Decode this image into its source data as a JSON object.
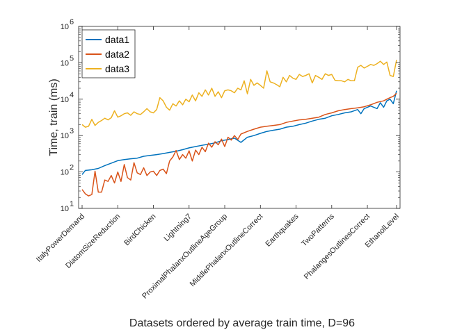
{
  "chart_data": {
    "type": "line",
    "title": "",
    "xlabel": "Datasets ordered by average train time, D=96",
    "ylabel": "Time, train (ms)",
    "yscale": "log",
    "ylim": [
      10,
      1000000
    ],
    "yticks": [
      {
        "value": 10,
        "base": "10",
        "exp": "1"
      },
      {
        "value": 100,
        "base": "10",
        "exp": "2"
      },
      {
        "value": 1000,
        "base": "10",
        "exp": "3"
      },
      {
        "value": 10000,
        "base": "10",
        "exp": "4"
      },
      {
        "value": 100000,
        "base": "10",
        "exp": "5"
      },
      {
        "value": 1000000,
        "base": "10",
        "exp": "6"
      }
    ],
    "xlim": [
      1,
      98
    ],
    "xticks": [
      {
        "index": 1,
        "label": "ItalyPowerDemand"
      },
      {
        "index": 12,
        "label": "DiatomSizeReduction"
      },
      {
        "index": 23,
        "label": "BirdChicken"
      },
      {
        "index": 34,
        "label": "Lightning7"
      },
      {
        "index": 45,
        "label": "ProximalPhalanxOutlineAgeGroup"
      },
      {
        "index": 56,
        "label": "MiddlePhalanxOutlineCorrect"
      },
      {
        "index": 67,
        "label": "Earthquakes"
      },
      {
        "index": 78,
        "label": "TwoPatterns"
      },
      {
        "index": 89,
        "label": "PhalangesOutlinesCorrect"
      },
      {
        "index": 98,
        "label": "EthanolLevel"
      }
    ],
    "grid": false,
    "legend_position": "top-left",
    "series": [
      {
        "name": "data1",
        "color": "#0072BD",
        "points": [
          [
            1,
            85
          ],
          [
            2,
            110
          ],
          [
            4,
            115
          ],
          [
            6,
            125
          ],
          [
            8,
            150
          ],
          [
            10,
            175
          ],
          [
            12,
            205
          ],
          [
            14,
            220
          ],
          [
            16,
            230
          ],
          [
            18,
            240
          ],
          [
            20,
            270
          ],
          [
            22,
            285
          ],
          [
            24,
            300
          ],
          [
            26,
            320
          ],
          [
            28,
            345
          ],
          [
            30,
            370
          ],
          [
            32,
            410
          ],
          [
            34,
            460
          ],
          [
            36,
            500
          ],
          [
            38,
            540
          ],
          [
            40,
            580
          ],
          [
            42,
            630
          ],
          [
            44,
            720
          ],
          [
            46,
            780
          ],
          [
            48,
            850
          ],
          [
            50,
            650
          ],
          [
            52,
            900
          ],
          [
            54,
            1000
          ],
          [
            56,
            1150
          ],
          [
            58,
            1300
          ],
          [
            60,
            1400
          ],
          [
            62,
            1500
          ],
          [
            64,
            1700
          ],
          [
            66,
            1800
          ],
          [
            68,
            2000
          ],
          [
            70,
            2200
          ],
          [
            72,
            2500
          ],
          [
            74,
            2800
          ],
          [
            76,
            3000
          ],
          [
            78,
            3500
          ],
          [
            80,
            3800
          ],
          [
            82,
            4200
          ],
          [
            84,
            4500
          ],
          [
            86,
            5200
          ],
          [
            87,
            4000
          ],
          [
            88,
            5500
          ],
          [
            90,
            6500
          ],
          [
            92,
            5500
          ],
          [
            93,
            8000
          ],
          [
            94,
            6000
          ],
          [
            95,
            9000
          ],
          [
            96,
            10000
          ],
          [
            97,
            7500
          ],
          [
            98,
            17000
          ]
        ]
      },
      {
        "name": "data2",
        "color": "#D95319",
        "points": [
          [
            1,
            33
          ],
          [
            2,
            25
          ],
          [
            3,
            22
          ],
          [
            4,
            24
          ],
          [
            5,
            105
          ],
          [
            6,
            28
          ],
          [
            7,
            28
          ],
          [
            8,
            60
          ],
          [
            9,
            55
          ],
          [
            10,
            80
          ],
          [
            11,
            50
          ],
          [
            12,
            100
          ],
          [
            13,
            55
          ],
          [
            14,
            160
          ],
          [
            15,
            70
          ],
          [
            16,
            60
          ],
          [
            17,
            180
          ],
          [
            18,
            95
          ],
          [
            19,
            85
          ],
          [
            20,
            130
          ],
          [
            21,
            80
          ],
          [
            22,
            100
          ],
          [
            23,
            105
          ],
          [
            24,
            80
          ],
          [
            25,
            110
          ],
          [
            26,
            120
          ],
          [
            27,
            90
          ],
          [
            28,
            200
          ],
          [
            29,
            260
          ],
          [
            30,
            390
          ],
          [
            31,
            220
          ],
          [
            32,
            300
          ],
          [
            33,
            240
          ],
          [
            34,
            380
          ],
          [
            35,
            200
          ],
          [
            36,
            400
          ],
          [
            37,
            300
          ],
          [
            38,
            480
          ],
          [
            39,
            360
          ],
          [
            40,
            620
          ],
          [
            41,
            480
          ],
          [
            42,
            680
          ],
          [
            43,
            560
          ],
          [
            44,
            800
          ],
          [
            45,
            500
          ],
          [
            46,
            900
          ],
          [
            47,
            750
          ],
          [
            48,
            1000
          ],
          [
            49,
            780
          ],
          [
            50,
            1100
          ],
          [
            52,
            1300
          ],
          [
            54,
            1500
          ],
          [
            56,
            1700
          ],
          [
            58,
            1800
          ],
          [
            60,
            1900
          ],
          [
            62,
            2000
          ],
          [
            64,
            2300
          ],
          [
            66,
            2500
          ],
          [
            68,
            2700
          ],
          [
            70,
            2800
          ],
          [
            72,
            3000
          ],
          [
            74,
            3200
          ],
          [
            76,
            3800
          ],
          [
            78,
            4200
          ],
          [
            80,
            4800
          ],
          [
            82,
            5200
          ],
          [
            84,
            5500
          ],
          [
            86,
            5800
          ],
          [
            88,
            6200
          ],
          [
            90,
            7000
          ],
          [
            92,
            8200
          ],
          [
            94,
            9000
          ],
          [
            95,
            10000
          ],
          [
            96,
            11000
          ],
          [
            97,
            12000
          ],
          [
            98,
            14500
          ]
        ]
      },
      {
        "name": "data3",
        "color": "#EDB120",
        "points": [
          [
            1,
            2000
          ],
          [
            2,
            1700
          ],
          [
            3,
            1800
          ],
          [
            4,
            2800
          ],
          [
            5,
            1900
          ],
          [
            6,
            2300
          ],
          [
            7,
            2600
          ],
          [
            8,
            3000
          ],
          [
            9,
            2700
          ],
          [
            10,
            3100
          ],
          [
            11,
            4800
          ],
          [
            12,
            3200
          ],
          [
            13,
            3500
          ],
          [
            14,
            4000
          ],
          [
            15,
            4200
          ],
          [
            16,
            3600
          ],
          [
            17,
            4500
          ],
          [
            18,
            4000
          ],
          [
            19,
            3800
          ],
          [
            20,
            4500
          ],
          [
            21,
            5500
          ],
          [
            22,
            4500
          ],
          [
            23,
            4200
          ],
          [
            24,
            5200
          ],
          [
            25,
            11000
          ],
          [
            26,
            9000
          ],
          [
            27,
            6000
          ],
          [
            28,
            5000
          ],
          [
            29,
            7500
          ],
          [
            30,
            6500
          ],
          [
            31,
            9000
          ],
          [
            32,
            7000
          ],
          [
            33,
            10000
          ],
          [
            34,
            8500
          ],
          [
            35,
            13000
          ],
          [
            36,
            9000
          ],
          [
            37,
            15000
          ],
          [
            38,
            12000
          ],
          [
            39,
            18000
          ],
          [
            40,
            13000
          ],
          [
            41,
            20000
          ],
          [
            42,
            12000
          ],
          [
            43,
            16000
          ],
          [
            44,
            11000
          ],
          [
            45,
            17000
          ],
          [
            46,
            18000
          ],
          [
            47,
            17000
          ],
          [
            48,
            15000
          ],
          [
            49,
            20000
          ],
          [
            50,
            18000
          ],
          [
            51,
            32000
          ],
          [
            52,
            14000
          ],
          [
            53,
            35000
          ],
          [
            54,
            24000
          ],
          [
            55,
            28000
          ],
          [
            56,
            24000
          ],
          [
            57,
            20000
          ],
          [
            58,
            60000
          ],
          [
            59,
            30000
          ],
          [
            60,
            28000
          ],
          [
            61,
            25000
          ],
          [
            62,
            22000
          ],
          [
            63,
            40000
          ],
          [
            64,
            30000
          ],
          [
            65,
            45000
          ],
          [
            66,
            38000
          ],
          [
            67,
            35000
          ],
          [
            68,
            48000
          ],
          [
            69,
            42000
          ],
          [
            70,
            45000
          ],
          [
            71,
            50000
          ],
          [
            72,
            28000
          ],
          [
            73,
            45000
          ],
          [
            74,
            40000
          ],
          [
            75,
            35000
          ],
          [
            76,
            50000
          ],
          [
            77,
            45000
          ],
          [
            78,
            48000
          ],
          [
            79,
            33000
          ],
          [
            80,
            32000
          ],
          [
            81,
            32000
          ],
          [
            82,
            30000
          ],
          [
            83,
            35000
          ],
          [
            84,
            32000
          ],
          [
            85,
            32000
          ],
          [
            86,
            75000
          ],
          [
            87,
            85000
          ],
          [
            88,
            72000
          ],
          [
            89,
            80000
          ],
          [
            90,
            90000
          ],
          [
            91,
            85000
          ],
          [
            92,
            95000
          ],
          [
            93,
            110000
          ],
          [
            94,
            90000
          ],
          [
            95,
            105000
          ],
          [
            96,
            45000
          ],
          [
            97,
            42000
          ],
          [
            98,
            120000
          ]
        ]
      }
    ]
  }
}
